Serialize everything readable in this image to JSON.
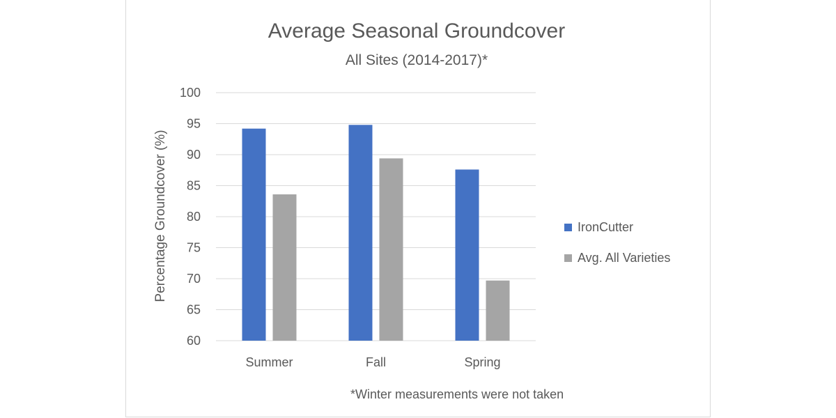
{
  "chart_data": {
    "type": "bar",
    "title": "Average Seasonal Groundcover",
    "subtitle": "All Sites (2014-2017)*",
    "xlabel": "",
    "ylabel": "Percentage Groundcover (%)",
    "categories": [
      "Summer",
      "Fall",
      "Spring"
    ],
    "series": [
      {
        "name": "IronCutter",
        "values": [
          94.2,
          94.8,
          87.6
        ],
        "color": "#4472c4"
      },
      {
        "name": "Avg. All Varieties",
        "values": [
          83.6,
          89.4,
          69.7
        ],
        "color": "#a5a5a5"
      }
    ],
    "ylim": [
      60,
      100
    ],
    "yticks": [
      "60",
      "65",
      "70",
      "75",
      "80",
      "85",
      "90",
      "95",
      "100"
    ],
    "grid": true,
    "legend_position": "right",
    "footnote": "*Winter measurements were not taken"
  },
  "colors": {
    "gridline": "#d9d9d9",
    "text": "#595959"
  }
}
